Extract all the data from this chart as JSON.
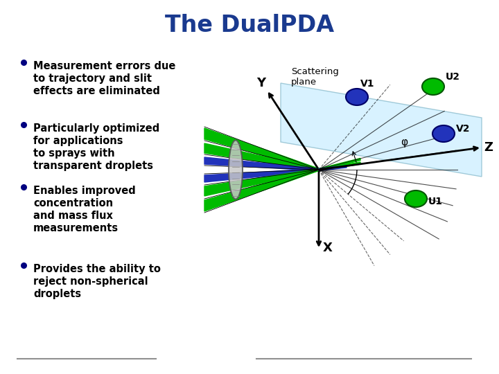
{
  "title": "The DualPDA",
  "title_color": "#1a3a8f",
  "title_fontsize": 24,
  "bullet_points": [
    "Measurement errors due\nto trajectory and slit\neffects are eliminated",
    "Particularly optimized\nfor applications\nto sprays with\ntransparent droplets",
    "Enables improved\nconcentration\nand mass flux\nmeasurements",
    "Provides the ability to\nreject non-spherical\ndroplets"
  ],
  "bullet_color": "#000080",
  "bullet_fontsize": 10.5,
  "background_color": "#ffffff",
  "line_color_bottom": "#909090",
  "green_color": "#00bb00",
  "blue_color": "#2233bb",
  "lens_color": "#b0b0b0",
  "plane_color": "#cceeff"
}
